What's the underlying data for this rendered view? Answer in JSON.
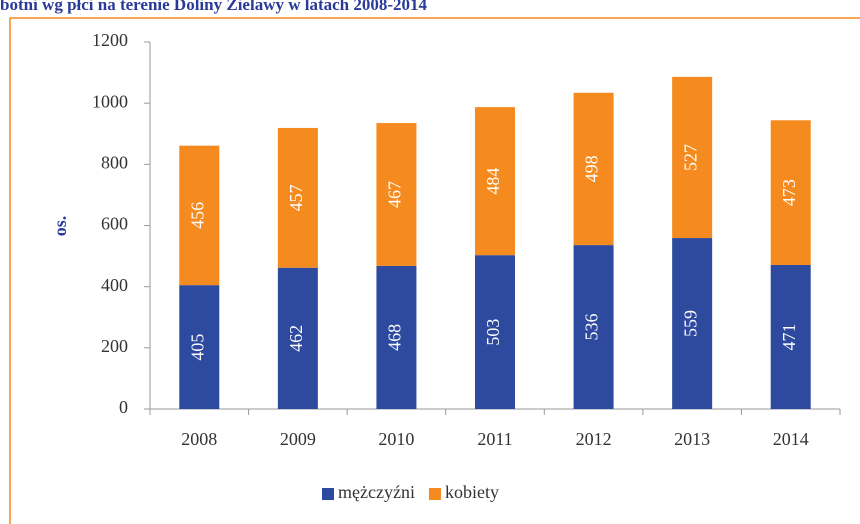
{
  "chart_data": {
    "type": "stacked_bar",
    "title": "botni wg płci na terenie Doliny Zielawy w latach 2008-2014",
    "ylabel": "os.",
    "categories": [
      "2008",
      "2009",
      "2010",
      "2011",
      "2012",
      "2013",
      "2014"
    ],
    "series": [
      {
        "name": "mężczyźni",
        "color": "#2e4a9e",
        "values": [
          405,
          462,
          468,
          503,
          536,
          559,
          471
        ]
      },
      {
        "name": "kobiety",
        "color": "#f58a1f",
        "values": [
          456,
          457,
          467,
          484,
          498,
          527,
          473
        ]
      }
    ],
    "ylim": [
      0,
      1200
    ],
    "yticks": [
      0,
      200,
      400,
      600,
      800,
      1000,
      1200
    ],
    "legend": "bottom"
  }
}
